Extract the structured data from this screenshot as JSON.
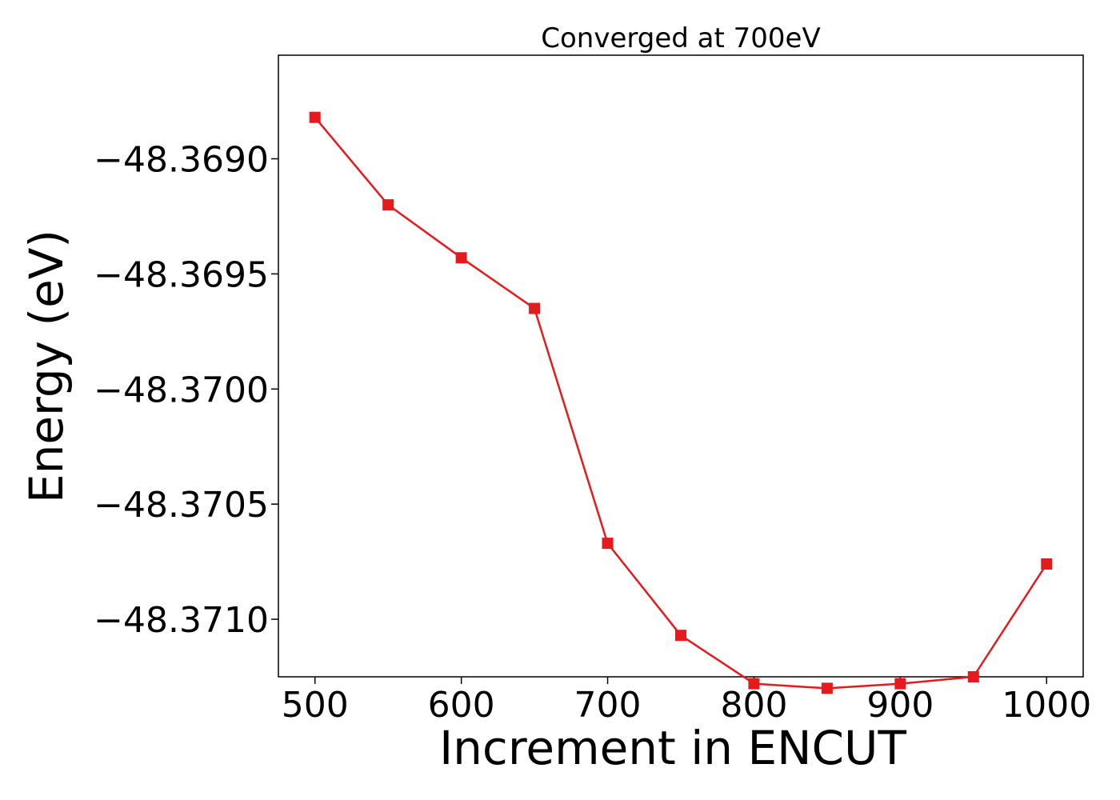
{
  "chart_data": {
    "type": "line",
    "title": "Converged at 700eV",
    "xlabel": "Increment in ENCUT",
    "ylabel": "Energy (eV)",
    "xlim": [
      475,
      1025
    ],
    "ylim": [
      -48.37125,
      -48.36855
    ],
    "x_ticks": [
      500,
      600,
      700,
      800,
      900,
      1000
    ],
    "x_tick_labels": [
      "500",
      "600",
      "700",
      "800",
      "900",
      "1000"
    ],
    "y_ticks": [
      -48.369,
      -48.3695,
      -48.37,
      -48.3705,
      -48.371
    ],
    "y_tick_labels": [
      "−48.3690",
      "−48.3695",
      "−48.3700",
      "−48.3705",
      "−48.3710"
    ],
    "grid": false,
    "series": [
      {
        "color": "#e41a1c",
        "marker": "square",
        "x": [
          500,
          550,
          600,
          650,
          700,
          750,
          800,
          850,
          900,
          950,
          1000
        ],
        "y": [
          -48.36882,
          -48.3692,
          -48.36943,
          -48.36965,
          -48.37067,
          -48.37107,
          -48.37128,
          -48.3713,
          -48.37128,
          -48.37125,
          -48.37076
        ]
      }
    ]
  }
}
